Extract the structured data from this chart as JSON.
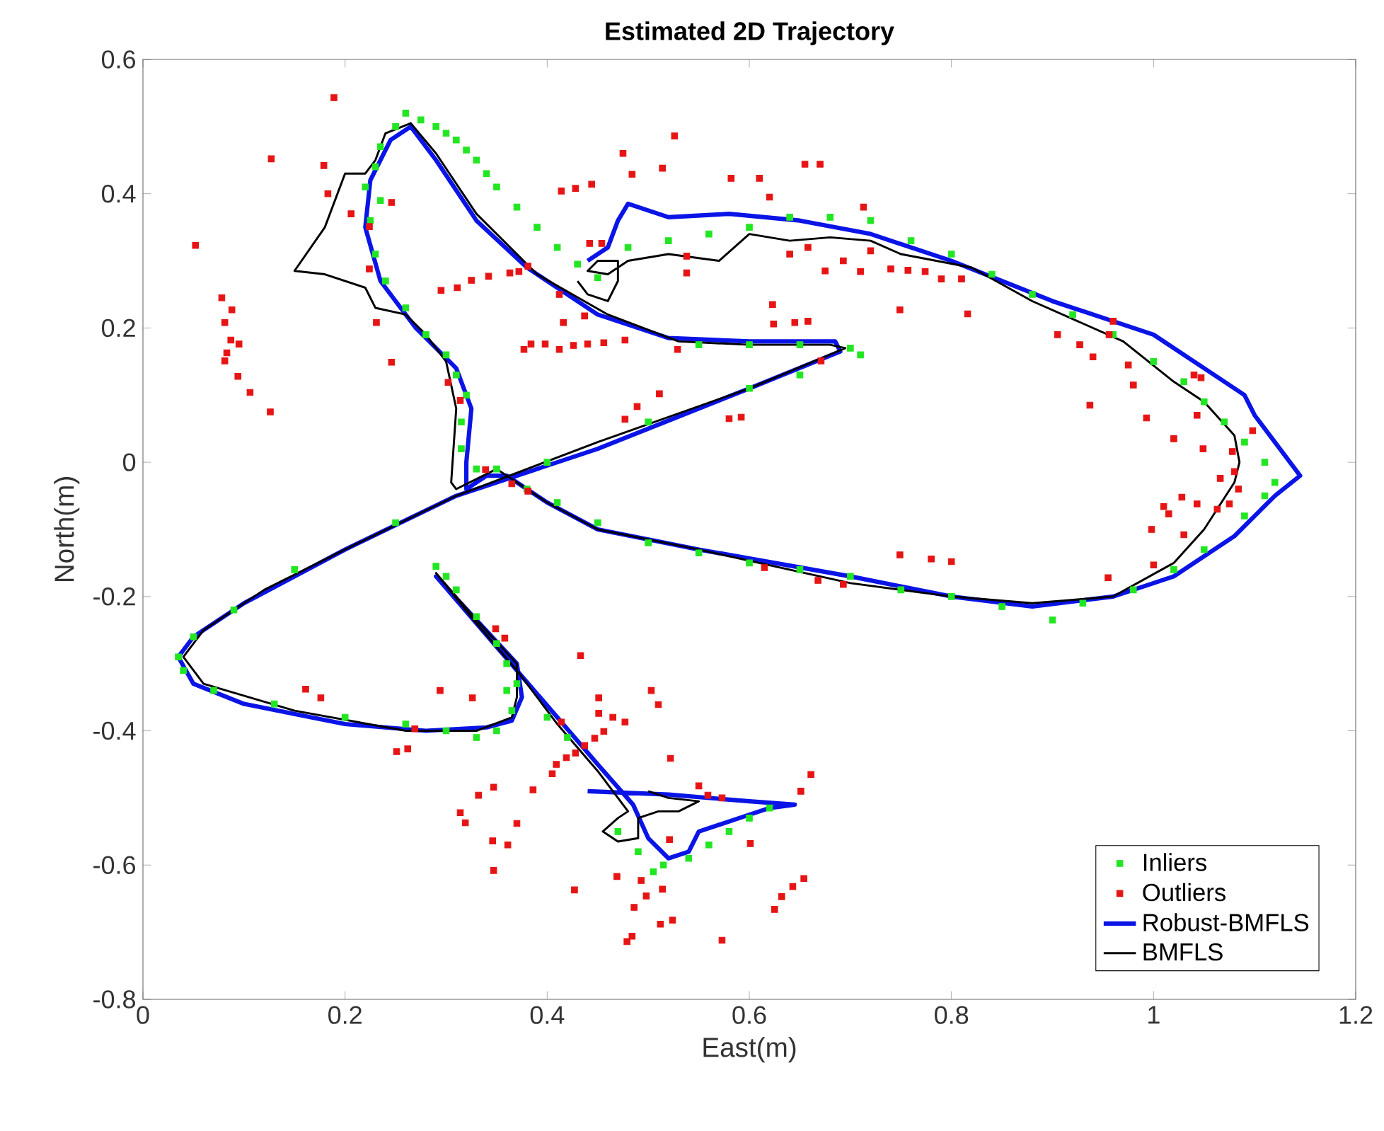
{
  "chart_data": {
    "type": "scatter",
    "title": "Estimated 2D Trajectory",
    "xlabel": "East(m)",
    "ylabel": "North(m)",
    "xlim": [
      0,
      1.2
    ],
    "ylim": [
      -0.8,
      0.6
    ],
    "xticks": [
      0,
      0.2,
      0.4,
      0.6,
      0.8,
      1,
      1.2
    ],
    "yticks": [
      -0.8,
      -0.6,
      -0.4,
      -0.2,
      0,
      0.2,
      0.4,
      0.6
    ],
    "legend": "bottom right",
    "series": [
      {
        "name": "Inliers",
        "marker": "square",
        "color": "#22e622",
        "x": [
          0.25,
          0.26,
          0.275,
          0.29,
          0.3,
          0.31,
          0.32,
          0.33,
          0.34,
          0.35,
          0.37,
          0.39,
          0.41,
          0.43,
          0.45,
          0.23,
          0.235,
          0.22,
          0.235,
          0.225,
          0.23,
          0.24,
          0.26,
          0.28,
          0.3,
          0.31,
          0.32,
          0.315,
          0.315,
          0.48,
          0.52,
          0.56,
          0.6,
          0.64,
          0.68,
          0.72,
          0.76,
          0.8,
          0.84,
          0.88,
          0.92,
          0.96,
          1.0,
          1.03,
          1.05,
          1.07,
          1.09,
          1.11,
          1.12,
          1.11,
          1.09,
          1.05,
          1.02,
          0.98,
          0.93,
          0.9,
          0.85,
          0.8,
          0.75,
          0.7,
          0.65,
          0.6,
          0.55,
          0.5,
          0.45,
          0.41,
          0.38,
          0.35,
          0.33,
          0.55,
          0.6,
          0.65,
          0.7,
          0.71,
          0.65,
          0.6,
          0.5,
          0.4,
          0.25,
          0.15,
          0.09,
          0.05,
          0.035,
          0.04,
          0.07,
          0.13,
          0.2,
          0.26,
          0.3,
          0.33,
          0.35,
          0.365,
          0.36,
          0.29,
          0.3,
          0.31,
          0.33,
          0.35,
          0.36,
          0.37,
          0.4,
          0.42,
          0.47,
          0.49,
          0.505,
          0.515,
          0.54,
          0.56,
          0.58,
          0.6,
          0.62
        ],
        "values": [
          0.5,
          0.52,
          0.51,
          0.5,
          0.49,
          0.48,
          0.465,
          0.45,
          0.43,
          0.41,
          0.38,
          0.35,
          0.32,
          0.295,
          0.275,
          0.44,
          0.47,
          0.41,
          0.39,
          0.36,
          0.31,
          0.27,
          0.23,
          0.19,
          0.16,
          0.13,
          0.1,
          0.06,
          0.02,
          0.32,
          0.33,
          0.34,
          0.35,
          0.365,
          0.365,
          0.36,
          0.33,
          0.31,
          0.28,
          0.25,
          0.22,
          0.19,
          0.15,
          0.12,
          0.09,
          0.06,
          0.03,
          0.0,
          -0.03,
          -0.05,
          -0.08,
          -0.13,
          -0.16,
          -0.19,
          -0.21,
          -0.235,
          -0.215,
          -0.2,
          -0.19,
          -0.17,
          -0.16,
          -0.15,
          -0.135,
          -0.12,
          -0.09,
          -0.06,
          -0.04,
          -0.01,
          -0.01,
          0.175,
          0.175,
          0.175,
          0.17,
          0.16,
          0.13,
          0.11,
          0.06,
          0.0,
          -0.09,
          -0.16,
          -0.22,
          -0.26,
          -0.29,
          -0.31,
          -0.34,
          -0.36,
          -0.38,
          -0.39,
          -0.4,
          -0.41,
          -0.4,
          -0.37,
          -0.34,
          -0.155,
          -0.17,
          -0.19,
          -0.23,
          -0.27,
          -0.3,
          -0.33,
          -0.38,
          -0.41,
          -0.55,
          -0.58,
          -0.61,
          -0.6,
          -0.59,
          -0.57,
          -0.55,
          -0.53,
          -0.515
        ]
      },
      {
        "name": "Outliers",
        "marker": "square",
        "color": "#e61414",
        "x": [
          0.189,
          0.127,
          0.179,
          0.183,
          0.052,
          0.206,
          0.224,
          0.246,
          0.224,
          0.231,
          0.246,
          0.302,
          0.314,
          0.078,
          0.088,
          0.081,
          0.087,
          0.095,
          0.083,
          0.081,
          0.094,
          0.106,
          0.126,
          0.295,
          0.311,
          0.325,
          0.342,
          0.363,
          0.372,
          0.381,
          0.377,
          0.384,
          0.398,
          0.412,
          0.426,
          0.44,
          0.456,
          0.477,
          0.412,
          0.416,
          0.437,
          0.475,
          0.484,
          0.514,
          0.526,
          0.414,
          0.428,
          0.444,
          0.442,
          0.454,
          0.477,
          0.489,
          0.511,
          0.339,
          0.365,
          0.381,
          0.96,
          0.956,
          0.905,
          0.927,
          0.94,
          0.975,
          0.98,
          0.937,
          0.993,
          1.04,
          1.047,
          1.043,
          1.02,
          1.049,
          1.078,
          1.098,
          1.066,
          1.08,
          1.084,
          1.043,
          1.028,
          1.01,
          1.015,
          0.998,
          1.03,
          1.063,
          1.075,
          1.0,
          0.955,
          0.749,
          0.78,
          0.8,
          0.693,
          0.668,
          0.615,
          0.749,
          0.816,
          0.623,
          0.624,
          0.645,
          0.658,
          0.74,
          0.757,
          0.774,
          0.79,
          0.81,
          0.713,
          0.72,
          0.693,
          0.675,
          0.71,
          0.64,
          0.658,
          0.62,
          0.61,
          0.582,
          0.655,
          0.67,
          0.538,
          0.538,
          0.529,
          0.671,
          0.58,
          0.592,
          0.349,
          0.358,
          0.433,
          0.161,
          0.176,
          0.294,
          0.326,
          0.269,
          0.251,
          0.262,
          0.451,
          0.451,
          0.503,
          0.51,
          0.414,
          0.477,
          0.465,
          0.456,
          0.447,
          0.437,
          0.428,
          0.419,
          0.409,
          0.405,
          0.522,
          0.386,
          0.347,
          0.332,
          0.314,
          0.319,
          0.37,
          0.346,
          0.361,
          0.347,
          0.55,
          0.559,
          0.573,
          0.521,
          0.601,
          0.427,
          0.469,
          0.493,
          0.498,
          0.514,
          0.486,
          0.512,
          0.524,
          0.479,
          0.484,
          0.661,
          0.651,
          0.654,
          0.643,
          0.632,
          0.625,
          0.573
        ],
        "values": [
          0.543,
          0.452,
          0.442,
          0.4,
          0.323,
          0.37,
          0.351,
          0.387,
          0.288,
          0.208,
          0.149,
          0.119,
          0.092,
          0.245,
          0.227,
          0.208,
          0.182,
          0.176,
          0.163,
          0.151,
          0.128,
          0.104,
          0.075,
          0.256,
          0.26,
          0.271,
          0.277,
          0.282,
          0.284,
          0.292,
          0.168,
          0.176,
          0.176,
          0.168,
          0.174,
          0.176,
          0.178,
          0.182,
          0.25,
          0.208,
          0.218,
          0.46,
          0.429,
          0.438,
          0.486,
          0.404,
          0.408,
          0.414,
          0.326,
          0.326,
          0.064,
          0.083,
          0.102,
          -0.011,
          -0.032,
          -0.043,
          0.21,
          0.19,
          0.19,
          0.175,
          0.157,
          0.145,
          0.115,
          0.085,
          0.066,
          0.13,
          0.126,
          0.07,
          0.035,
          0.02,
          0.016,
          0.047,
          -0.024,
          -0.014,
          -0.04,
          -0.062,
          -0.052,
          -0.066,
          -0.077,
          -0.1,
          -0.108,
          -0.07,
          -0.062,
          -0.153,
          -0.172,
          -0.138,
          -0.144,
          -0.148,
          -0.182,
          -0.176,
          -0.157,
          0.227,
          0.221,
          0.235,
          0.206,
          0.208,
          0.21,
          0.288,
          0.286,
          0.284,
          0.273,
          0.273,
          0.38,
          0.315,
          0.3,
          0.285,
          0.284,
          0.31,
          0.32,
          0.395,
          0.423,
          0.423,
          0.444,
          0.444,
          0.307,
          0.282,
          0.168,
          0.151,
          0.065,
          0.067,
          -0.248,
          -0.262,
          -0.288,
          -0.338,
          -0.351,
          -0.34,
          -0.351,
          -0.397,
          -0.431,
          -0.427,
          -0.351,
          -0.374,
          -0.34,
          -0.361,
          -0.387,
          -0.387,
          -0.38,
          -0.401,
          -0.411,
          -0.422,
          -0.433,
          -0.44,
          -0.45,
          -0.464,
          -0.441,
          -0.488,
          -0.484,
          -0.496,
          -0.522,
          -0.537,
          -0.538,
          -0.564,
          -0.57,
          -0.608,
          -0.482,
          -0.496,
          -0.5,
          -0.562,
          -0.568,
          -0.637,
          -0.617,
          -0.623,
          -0.646,
          -0.636,
          -0.663,
          -0.688,
          -0.682,
          -0.714,
          -0.706,
          -0.465,
          -0.49,
          -0.62,
          -0.632,
          -0.647,
          -0.666,
          -0.712
        ]
      },
      {
        "name": "Robust-BMFLS",
        "type": "line",
        "marker": "none",
        "line_style": "solid",
        "color": "#0a14e6",
        "x": [
          0.44,
          0.52,
          0.6,
          0.645,
          0.62,
          0.59,
          0.57,
          0.55,
          0.54,
          0.52,
          0.5,
          0.485,
          0.45,
          0.41,
          0.37,
          0.33,
          0.29,
          0.33,
          0.37,
          0.375,
          0.365,
          0.34,
          0.28,
          0.2,
          0.1,
          0.05,
          0.035,
          0.05,
          0.1,
          0.2,
          0.31,
          0.45,
          0.6,
          0.69,
          0.685,
          0.6,
          0.52,
          0.45,
          0.38,
          0.33,
          0.29,
          0.265,
          0.245,
          0.225,
          0.22,
          0.235,
          0.27,
          0.31,
          0.325,
          0.32,
          0.32,
          0.34,
          0.36,
          0.4,
          0.45,
          0.55,
          0.7,
          0.8,
          0.88,
          0.96,
          1.02,
          1.08,
          1.12,
          1.145,
          1.13,
          1.1,
          1.09,
          1.05,
          1.0,
          0.9,
          0.8,
          0.72,
          0.65,
          0.58,
          0.52,
          0.48,
          0.47,
          0.46,
          0.44
        ],
        "values": [
          -0.49,
          -0.495,
          -0.505,
          -0.51,
          -0.515,
          -0.53,
          -0.54,
          -0.55,
          -0.58,
          -0.59,
          -0.56,
          -0.51,
          -0.45,
          -0.38,
          -0.31,
          -0.24,
          -0.17,
          -0.235,
          -0.3,
          -0.35,
          -0.385,
          -0.395,
          -0.4,
          -0.39,
          -0.36,
          -0.33,
          -0.29,
          -0.26,
          -0.21,
          -0.13,
          -0.05,
          0.02,
          0.11,
          0.165,
          0.18,
          0.18,
          0.185,
          0.22,
          0.29,
          0.36,
          0.45,
          0.5,
          0.48,
          0.42,
          0.35,
          0.27,
          0.2,
          0.14,
          0.08,
          0.0,
          -0.04,
          -0.02,
          -0.02,
          -0.06,
          -0.1,
          -0.13,
          -0.17,
          -0.2,
          -0.215,
          -0.2,
          -0.17,
          -0.11,
          -0.05,
          -0.02,
          0.01,
          0.07,
          0.1,
          0.14,
          0.19,
          0.24,
          0.3,
          0.34,
          0.36,
          0.37,
          0.365,
          0.385,
          0.36,
          0.32,
          0.3
        ]
      },
      {
        "name": "BMFLS",
        "type": "line",
        "marker": "none",
        "line_style": "solid",
        "color": "#000000",
        "x": [
          0.5,
          0.52,
          0.55,
          0.53,
          0.51,
          0.49,
          0.49,
          0.47,
          0.455,
          0.47,
          0.48,
          0.45,
          0.41,
          0.37,
          0.33,
          0.29,
          0.33,
          0.37,
          0.37,
          0.365,
          0.33,
          0.26,
          0.15,
          0.06,
          0.04,
          0.06,
          0.12,
          0.2,
          0.31,
          0.45,
          0.6,
          0.695,
          0.68,
          0.6,
          0.53,
          0.46,
          0.39,
          0.33,
          0.29,
          0.265,
          0.24,
          0.23,
          0.22,
          0.2,
          0.18,
          0.15,
          0.18,
          0.22,
          0.23,
          0.26,
          0.28,
          0.3,
          0.31,
          0.305,
          0.31,
          0.35,
          0.4,
          0.45,
          0.55,
          0.7,
          0.8,
          0.88,
          0.96,
          1.02,
          1.05,
          1.08,
          1.085,
          1.08,
          1.05,
          1.02,
          0.97,
          0.88,
          0.82,
          0.75,
          0.72,
          0.68,
          0.64,
          0.6,
          0.57,
          0.52,
          0.48,
          0.46,
          0.44,
          0.45,
          0.47,
          0.47,
          0.46,
          0.44,
          0.43
        ],
        "values": [
          -0.49,
          -0.5,
          -0.505,
          -0.52,
          -0.52,
          -0.53,
          -0.56,
          -0.565,
          -0.55,
          -0.53,
          -0.52,
          -0.46,
          -0.39,
          -0.31,
          -0.24,
          -0.165,
          -0.235,
          -0.3,
          -0.35,
          -0.38,
          -0.4,
          -0.4,
          -0.37,
          -0.33,
          -0.29,
          -0.25,
          -0.19,
          -0.13,
          -0.05,
          0.03,
          0.11,
          0.17,
          0.175,
          0.175,
          0.18,
          0.22,
          0.28,
          0.37,
          0.46,
          0.505,
          0.49,
          0.45,
          0.43,
          0.43,
          0.35,
          0.285,
          0.28,
          0.26,
          0.23,
          0.22,
          0.19,
          0.15,
          0.08,
          -0.03,
          -0.04,
          -0.01,
          -0.06,
          -0.1,
          -0.13,
          -0.18,
          -0.2,
          -0.21,
          -0.2,
          -0.15,
          -0.1,
          -0.03,
          0.0,
          0.04,
          0.09,
          0.12,
          0.18,
          0.24,
          0.29,
          0.31,
          0.33,
          0.335,
          0.33,
          0.34,
          0.3,
          0.31,
          0.3,
          0.28,
          0.285,
          0.3,
          0.3,
          0.27,
          0.24,
          0.25,
          0.27
        ]
      }
    ]
  }
}
